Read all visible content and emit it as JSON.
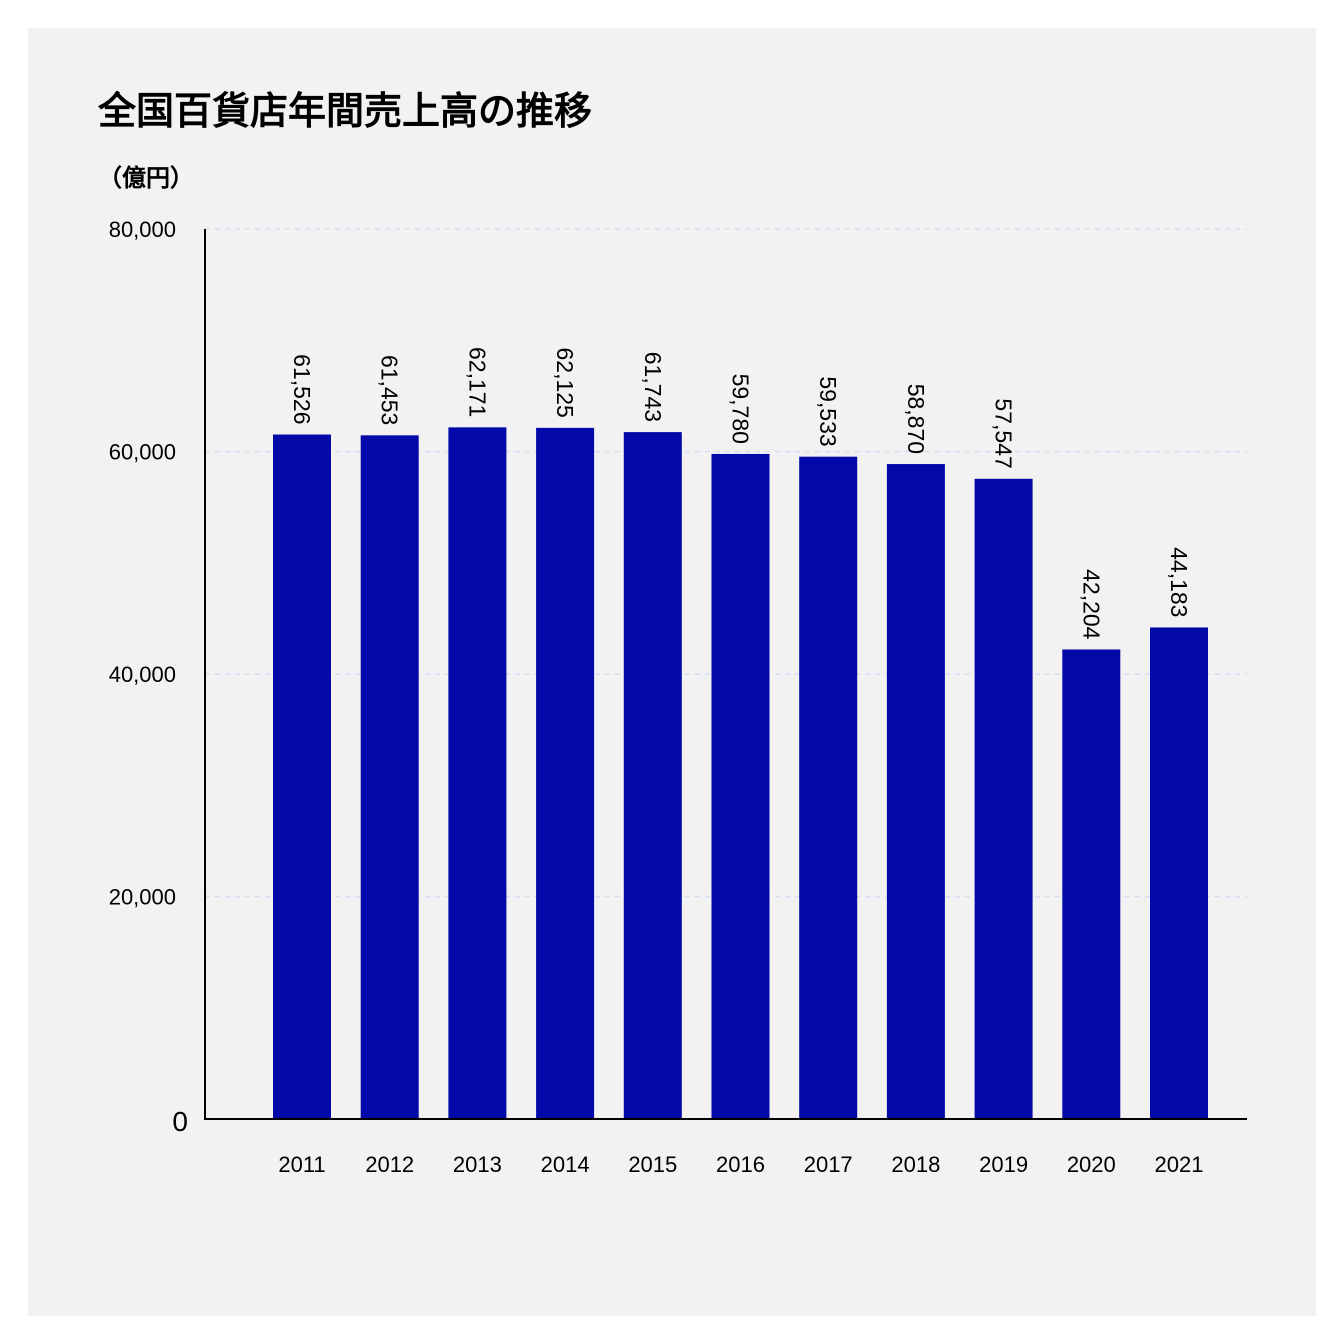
{
  "chart_data": {
    "type": "bar",
    "title": "全国百貨店年間売上高の推移",
    "unit_label": "（億円）",
    "xlabel": "",
    "ylabel": "",
    "categories": [
      "2011",
      "2012",
      "2013",
      "2014",
      "2015",
      "2016",
      "2017",
      "2018",
      "2019",
      "2020",
      "2021"
    ],
    "values": [
      61526,
      61453,
      62171,
      62125,
      61743,
      59780,
      59533,
      58870,
      57547,
      42204,
      44183
    ],
    "value_labels": [
      "61,526",
      "61,453",
      "62,171",
      "62,125",
      "61,743",
      "59,780",
      "59,533",
      "58,870",
      "57,547",
      "42,204",
      "44,183"
    ],
    "ylim": [
      0,
      80000
    ],
    "yticks": [
      0,
      20000,
      40000,
      60000,
      80000
    ],
    "ytick_labels": [
      "0",
      "20,000",
      "40,000",
      "60,000",
      "80,000"
    ],
    "grid": true,
    "legend": "none",
    "bar_color": "#0209a8",
    "grid_color": "#d6dcf5"
  }
}
